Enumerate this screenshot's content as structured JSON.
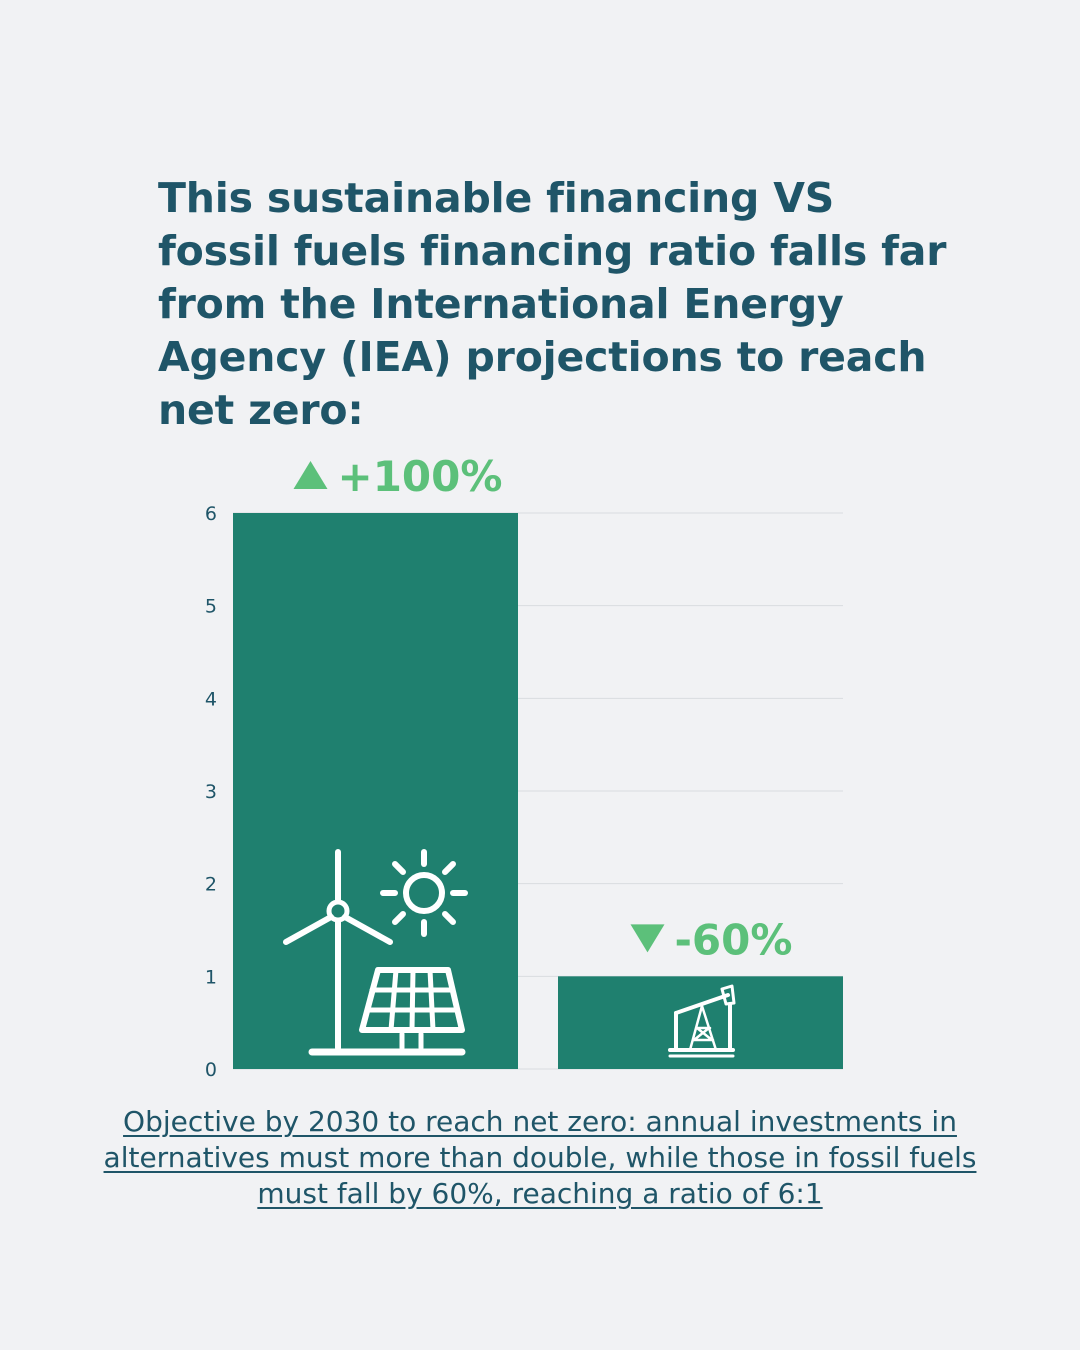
{
  "headline": "This sustainable financing VS fossil fuels financing ratio falls far from the International Energy Agency (IEA) projections to reach net zero:",
  "caption": "Objective by 2030 to reach net zero: annual investments in alternatives must more than double, while those in fossil fuels must fall by 60%, reaching a ratio of 6:1",
  "colors": {
    "background": "#f1f2f4",
    "text": "#1f5568",
    "bar": "#1f806f",
    "annotation": "#5cc07a",
    "grid": "#d9dcdf"
  },
  "chart_data": {
    "type": "bar",
    "categories": [
      "",
      ""
    ],
    "values": [
      6,
      1
    ],
    "ylim": [
      0,
      6
    ],
    "yticks": [
      0,
      1,
      2,
      3,
      4,
      5,
      6
    ],
    "grid": true,
    "annotations": [
      {
        "text": "+100%",
        "direction": "up",
        "icon": "up-triangle-icon"
      },
      {
        "text": "-60%",
        "direction": "down",
        "icon": "down-triangle-icon"
      }
    ],
    "bar_icons": [
      "wind-solar-icon",
      "oil-pump-icon"
    ]
  }
}
